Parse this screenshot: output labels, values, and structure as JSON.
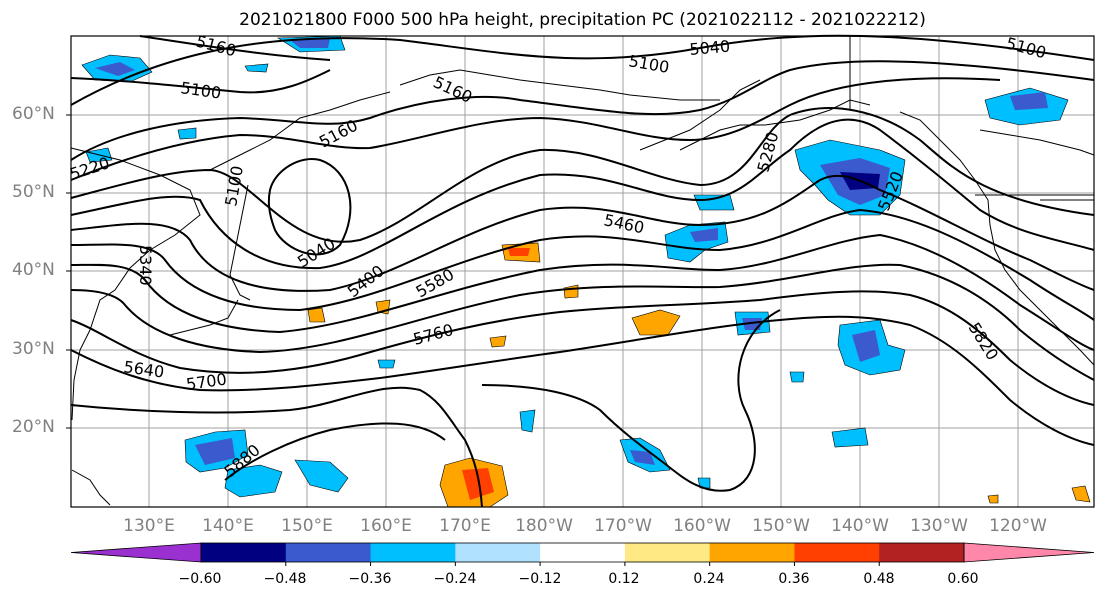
{
  "title": "2021021800 F000 500 hPa height, precipitation PC (2021022112 - 2021022212)",
  "lat_labels": [
    "60°N",
    "50°N",
    "40°N",
    "30°N",
    "20°N"
  ],
  "lon_labels": [
    "130°E",
    "140°E",
    "150°E",
    "160°E",
    "170°E",
    "180°W",
    "170°W",
    "160°W",
    "150°W",
    "140°W",
    "130°W",
    "120°W"
  ],
  "contour_labels": [
    "5160",
    "5100",
    "5040",
    "5100",
    "5160",
    "5220",
    "5160",
    "5280",
    "5040",
    "5100",
    "5460",
    "5400",
    "5580",
    "5760",
    "5520",
    "5640",
    "5700",
    "5820",
    "5880",
    "5340",
    "5100"
  ],
  "colorbar": {
    "ticks": [
      "−0.60",
      "−0.48",
      "−0.36",
      "−0.24",
      "−0.12",
      "0.12",
      "0.24",
      "0.36",
      "0.48",
      "0.60"
    ],
    "colors": [
      "#9a30d0",
      "#000080",
      "#3a5acd",
      "#00bfff",
      "#b0e2ff",
      "#ffffff",
      "#ffe985",
      "#ffa500",
      "#ff4000",
      "#b22222",
      "#ff88aa"
    ]
  },
  "colors": {
    "contour": "#000000",
    "grid": "#a0a0a0",
    "axis_labels": "#808080"
  }
}
